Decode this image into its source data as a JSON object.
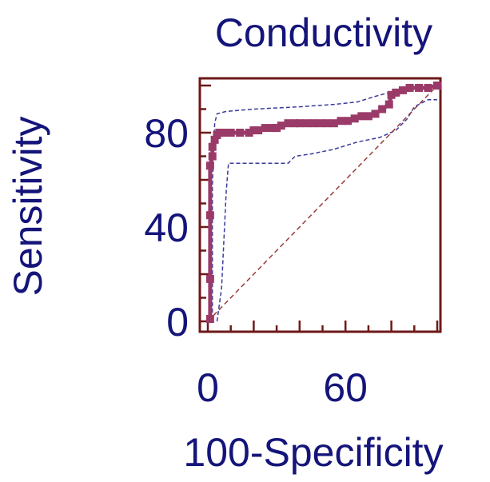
{
  "chart_data": {
    "type": "line",
    "title": "Conductivity",
    "xlabel": "100-Specificity",
    "ylabel": "Sensitivity",
    "xlim": [
      0,
      100
    ],
    "ylim": [
      0,
      100
    ],
    "xticks": [
      "0",
      "60"
    ],
    "xtick_values": [
      0,
      60
    ],
    "yticks": [
      "0",
      "40",
      "80"
    ],
    "ytick_values": [
      0,
      40,
      80
    ],
    "grid": false,
    "colors": {
      "roc": "#9a3a68",
      "ci": "#3a3a9c",
      "diagonal": "#9a3a3a",
      "frame": "#6e1818",
      "text": "#14147a"
    },
    "series": [
      {
        "style": "solid-markers",
        "points": [
          [
            1,
            1
          ],
          [
            1,
            18
          ],
          [
            1,
            45
          ],
          [
            1,
            66
          ],
          [
            2,
            70
          ],
          [
            2,
            74
          ],
          [
            3,
            77
          ],
          [
            4,
            79
          ],
          [
            5,
            80
          ],
          [
            7,
            80
          ],
          [
            10,
            80
          ],
          [
            14,
            80
          ],
          [
            18,
            80
          ],
          [
            20,
            81
          ],
          [
            22,
            81
          ],
          [
            25,
            82
          ],
          [
            28,
            82
          ],
          [
            30,
            82
          ],
          [
            32,
            83
          ],
          [
            35,
            84
          ],
          [
            38,
            84
          ],
          [
            40,
            84
          ],
          [
            43,
            84
          ],
          [
            46,
            84
          ],
          [
            49,
            84
          ],
          [
            52,
            84
          ],
          [
            55,
            84
          ],
          [
            58,
            85
          ],
          [
            61,
            85
          ],
          [
            64,
            86
          ],
          [
            67,
            87
          ],
          [
            70,
            87
          ],
          [
            73,
            88
          ],
          [
            76,
            90
          ],
          [
            79,
            92
          ],
          [
            80,
            96
          ],
          [
            82,
            97
          ],
          [
            85,
            98
          ],
          [
            88,
            99
          ],
          [
            92,
            99
          ],
          [
            96,
            99
          ],
          [
            100,
            100
          ]
        ]
      },
      {
        "style": "dashed-upper",
        "points": [
          [
            2,
            1
          ],
          [
            2,
            58
          ],
          [
            3,
            84
          ],
          [
            4,
            88
          ],
          [
            8,
            89
          ],
          [
            20,
            90
          ],
          [
            40,
            91
          ],
          [
            55,
            92
          ],
          [
            65,
            93
          ],
          [
            75,
            96
          ],
          [
            88,
            99
          ],
          [
            100,
            100
          ]
        ]
      },
      {
        "style": "dashed-lower",
        "points": [
          [
            4,
            0
          ],
          [
            6,
            14
          ],
          [
            8,
            55
          ],
          [
            9,
            67
          ],
          [
            20,
            67
          ],
          [
            35,
            67
          ],
          [
            38,
            70
          ],
          [
            45,
            71
          ],
          [
            55,
            73
          ],
          [
            65,
            76
          ],
          [
            75,
            78
          ],
          [
            82,
            81
          ],
          [
            87,
            86
          ],
          [
            90,
            91
          ],
          [
            96,
            94
          ],
          [
            100,
            94
          ]
        ]
      },
      {
        "style": "dashed-diagonal",
        "points": [
          [
            0,
            0
          ],
          [
            100,
            100
          ]
        ]
      }
    ]
  }
}
